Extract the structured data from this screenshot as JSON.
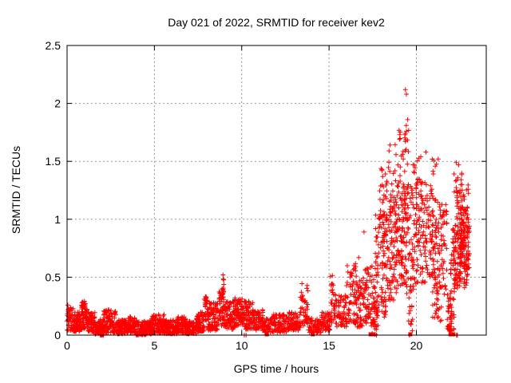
{
  "chart_data": {
    "type": "scatter",
    "title": "Day 021 of 2022, SRMTID for receiver kev2",
    "xlabel": "GPS time / hours",
    "ylabel": "SRMTID / TECUs",
    "series_name": "SRMTID",
    "xlim": [
      0,
      24
    ],
    "ylim": [
      0,
      2.5
    ],
    "xticks": [
      [
        0,
        "0"
      ],
      [
        5,
        "5"
      ],
      [
        10,
        "10"
      ],
      [
        15,
        "15"
      ],
      [
        20,
        "20"
      ]
    ],
    "yticks": [
      [
        0,
        "0"
      ],
      [
        0.5,
        "0.5"
      ],
      [
        1,
        "1"
      ],
      [
        1.5,
        "1.5"
      ],
      [
        2,
        "2"
      ],
      [
        2.5,
        "2.5"
      ]
    ],
    "grid": true,
    "legend": false,
    "marker": "plus",
    "marker_color": "#ff0000",
    "grid_color": "#999999",
    "border_color": "#000000",
    "seed": 42,
    "density_clusters": [
      [
        0.0,
        0.35,
        0.04,
        0.26,
        45,
        1.3
      ],
      [
        0.35,
        0.8,
        0.03,
        0.2,
        80,
        1.4
      ],
      [
        0.8,
        1.15,
        0.05,
        0.3,
        65,
        1.4
      ],
      [
        1.15,
        1.6,
        0.03,
        0.2,
        75,
        1.4
      ],
      [
        1.6,
        2.1,
        0.0,
        0.14,
        85,
        1.2
      ],
      [
        2.1,
        2.8,
        0.02,
        0.22,
        105,
        1.5
      ],
      [
        2.8,
        3.4,
        0.01,
        0.13,
        95,
        1.2
      ],
      [
        3.4,
        3.9,
        0.02,
        0.16,
        75,
        1.3
      ],
      [
        3.9,
        4.8,
        0.0,
        0.12,
        135,
        1.2
      ],
      [
        4.8,
        5.6,
        0.02,
        0.18,
        115,
        1.5
      ],
      [
        5.6,
        6.3,
        0.01,
        0.13,
        105,
        1.3
      ],
      [
        6.3,
        6.8,
        0.02,
        0.16,
        75,
        1.3
      ],
      [
        6.8,
        7.4,
        0.01,
        0.12,
        85,
        1.2
      ],
      [
        7.4,
        7.85,
        0.03,
        0.2,
        65,
        1.3
      ],
      [
        7.85,
        8.05,
        0.12,
        0.35,
        25,
        1.0
      ],
      [
        8.05,
        8.6,
        0.04,
        0.28,
        85,
        1.3
      ],
      [
        8.6,
        9.05,
        0.08,
        0.38,
        60,
        1.2
      ],
      [
        8.85,
        9.0,
        0.3,
        0.53,
        10,
        1.0
      ],
      [
        9.05,
        9.6,
        0.05,
        0.3,
        85,
        1.3
      ],
      [
        9.6,
        10.05,
        0.08,
        0.33,
        65,
        1.2
      ],
      [
        10.05,
        10.65,
        0.05,
        0.3,
        85,
        1.3
      ],
      [
        10.65,
        11.25,
        0.04,
        0.22,
        70,
        1.2
      ],
      [
        11.25,
        11.75,
        0.02,
        0.15,
        45,
        1.2
      ],
      [
        11.75,
        12.65,
        0.02,
        0.18,
        90,
        1.3
      ],
      [
        12.65,
        13.35,
        0.04,
        0.2,
        75,
        1.3
      ],
      [
        13.35,
        13.8,
        0.08,
        0.45,
        45,
        1.4
      ],
      [
        13.8,
        14.55,
        0.02,
        0.15,
        65,
        1.2
      ],
      [
        14.55,
        15.05,
        0.04,
        0.2,
        55,
        1.2
      ],
      [
        15.05,
        15.4,
        0.1,
        0.52,
        38,
        1.3
      ],
      [
        15.4,
        16.0,
        0.07,
        0.35,
        60,
        1.3
      ],
      [
        16.0,
        16.55,
        0.1,
        0.62,
        60,
        1.4
      ],
      [
        16.55,
        17.05,
        0.07,
        0.52,
        60,
        1.3
      ],
      [
        17.05,
        17.65,
        0.08,
        0.6,
        70,
        1.2
      ],
      [
        17.45,
        17.8,
        0.0,
        0.3,
        25,
        1.0
      ],
      [
        17.65,
        18.25,
        0.15,
        1.05,
        90,
        1.1
      ],
      [
        17.9,
        18.35,
        0.85,
        1.45,
        28,
        1.0
      ],
      [
        18.25,
        18.85,
        0.3,
        1.25,
        90,
        1.0
      ],
      [
        18.4,
        18.95,
        1.05,
        1.65,
        16,
        1.0
      ],
      [
        18.85,
        19.35,
        0.4,
        1.35,
        85,
        1.0
      ],
      [
        19.0,
        19.6,
        1.25,
        1.78,
        25,
        1.0
      ],
      [
        19.3,
        19.95,
        0.35,
        1.3,
        85,
        1.0
      ],
      [
        19.55,
        19.8,
        0.02,
        0.45,
        14,
        1.0
      ],
      [
        19.95,
        20.55,
        0.45,
        1.35,
        85,
        1.0
      ],
      [
        19.8,
        20.15,
        1.4,
        1.6,
        7,
        1.0
      ],
      [
        20.55,
        21.15,
        0.5,
        1.3,
        75,
        1.0
      ],
      [
        20.9,
        21.45,
        0.1,
        0.6,
        35,
        1.0
      ],
      [
        20.9,
        21.2,
        1.38,
        1.52,
        6,
        1.0
      ],
      [
        21.15,
        21.75,
        0.35,
        1.15,
        65,
        1.0
      ],
      [
        21.75,
        22.15,
        0.03,
        0.35,
        45,
        1.2
      ],
      [
        21.95,
        22.25,
        0.3,
        0.95,
        40,
        1.0
      ],
      [
        22.15,
        22.6,
        0.35,
        1.4,
        55,
        1.0
      ],
      [
        22.3,
        23.0,
        0.4,
        1.3,
        115,
        1.0
      ],
      [
        22.5,
        23.05,
        0.55,
        1.1,
        75,
        1.0
      ]
    ],
    "outliers": [
      [
        19.37,
        2.12
      ],
      [
        19.43,
        2.08
      ],
      [
        19.5,
        1.86
      ],
      [
        19.42,
        1.81
      ],
      [
        19.05,
        1.73
      ],
      [
        19.35,
        1.73
      ],
      [
        20.55,
        1.58
      ],
      [
        20.25,
        1.54
      ],
      [
        21.25,
        1.52
      ],
      [
        22.28,
        1.49
      ],
      [
        22.42,
        1.47
      ],
      [
        17.0,
        0.89
      ],
      [
        16.7,
        0.67
      ],
      [
        8.93,
        0.52
      ]
    ],
    "on_axis_squares": [
      11.44,
      14.07,
      17.38,
      17.52,
      19.65,
      21.95,
      22.05,
      22.12
    ],
    "on_axis_plus": [
      10.15,
      10.25,
      17.72,
      19.6,
      22.3,
      22.35
    ]
  }
}
